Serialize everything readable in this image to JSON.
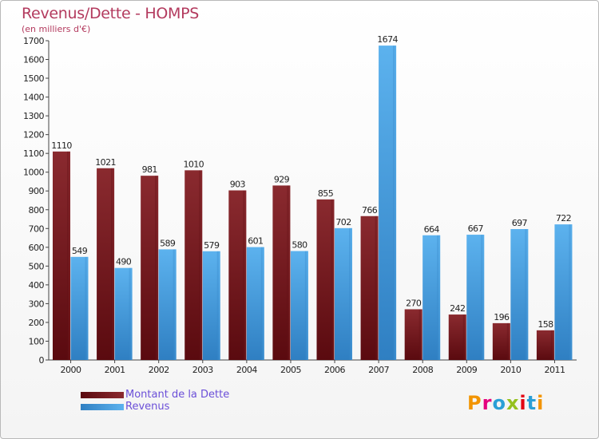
{
  "header": {
    "title": "Revenus/Dette - HOMPS",
    "subtitle": "(en milliers d'€)"
  },
  "legend": {
    "dette_label": "Montant de la Dette",
    "revenus_label": "Revenus"
  },
  "logo": {
    "text": "Proxiti",
    "colors": [
      "#f29400",
      "#e5007e",
      "#2a9fd6",
      "#95c11f",
      "#e30613",
      "#2a9fd6",
      "#f29400"
    ]
  },
  "colors": {
    "dette": "#7a1f24",
    "revenus": "#4aa3e6",
    "title": "#b33a5e",
    "legend_text": "#6b4fd8"
  },
  "chart_data": {
    "type": "bar",
    "title": "Revenus/Dette - HOMPS",
    "subtitle": "(en milliers d'€)",
    "categories": [
      "2000",
      "2001",
      "2002",
      "2003",
      "2004",
      "2005",
      "2006",
      "2007",
      "2008",
      "2009",
      "2010",
      "2011"
    ],
    "series": [
      {
        "name": "Montant de la Dette",
        "values": [
          1110,
          1021,
          981,
          1010,
          903,
          929,
          855,
          766,
          270,
          242,
          196,
          158
        ]
      },
      {
        "name": "Revenus",
        "values": [
          549,
          490,
          589,
          579,
          601,
          580,
          702,
          1674,
          664,
          667,
          697,
          722
        ]
      }
    ],
    "ylim": [
      0,
      1700
    ],
    "yticks": [
      0,
      100,
      200,
      300,
      400,
      500,
      600,
      700,
      800,
      900,
      1000,
      1100,
      1200,
      1300,
      1400,
      1500,
      1600,
      1700
    ],
    "grid": false,
    "legend_position": "bottom-left",
    "data_labels": true
  }
}
